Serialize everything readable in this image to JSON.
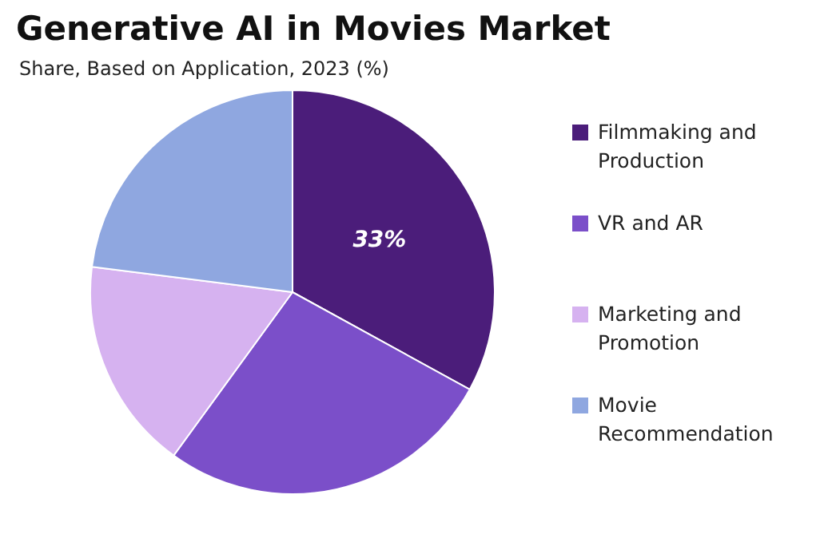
{
  "chart_data": {
    "type": "pie",
    "title": "Generative AI in Movies Market",
    "subtitle": "Share, Based on Application, 2023 (%)",
    "categories": [
      "Filmmaking and Production",
      "VR and AR",
      "Marketing and Promotion",
      "Movie Recommendation"
    ],
    "values": [
      33,
      27,
      17,
      23
    ],
    "colors": [
      "#4b1d7a",
      "#7b4fc9",
      "#d6b2f0",
      "#8fa7e0"
    ],
    "value_labels": [
      "33%",
      null,
      null,
      null
    ],
    "legend": "right"
  }
}
